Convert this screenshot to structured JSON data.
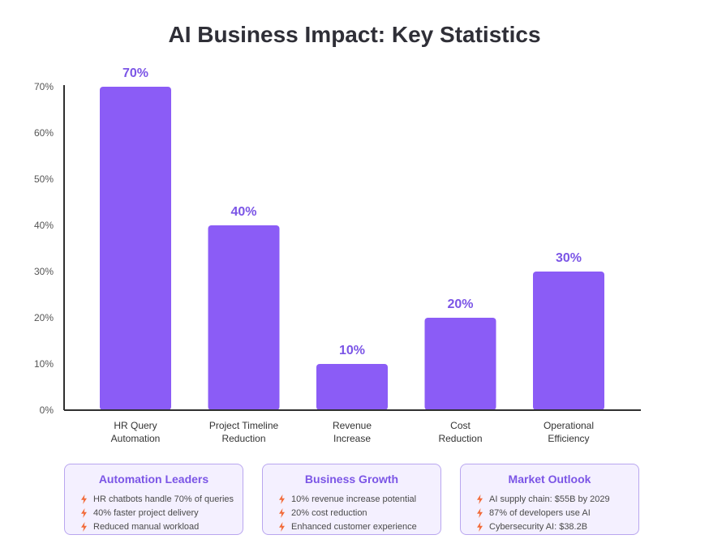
{
  "title": "AI Business Impact: Key Statistics",
  "chart_data": {
    "type": "bar",
    "categories": [
      [
        "HR Query",
        "Automation"
      ],
      [
        "Project Timeline",
        "Reduction"
      ],
      [
        "Revenue",
        "Increase"
      ],
      [
        "Cost",
        "Reduction"
      ],
      [
        "Operational",
        "Efficiency"
      ]
    ],
    "values": [
      70,
      40,
      10,
      20,
      30
    ],
    "value_labels": [
      "70%",
      "40%",
      "10%",
      "20%",
      "30%"
    ],
    "y_ticks": [
      {
        "value": 0,
        "label": "0%"
      },
      {
        "value": 10,
        "label": "10%"
      },
      {
        "value": 20,
        "label": "20%"
      },
      {
        "value": 30,
        "label": "30%"
      },
      {
        "value": 40,
        "label": "40%"
      },
      {
        "value": 50,
        "label": "50%"
      },
      {
        "value": 60,
        "label": "60%"
      },
      {
        "value": 70,
        "label": "70%"
      }
    ],
    "ylim": [
      0,
      70
    ],
    "grid": false,
    "bar_color": "#8b5cf6",
    "label_color": "#7b55e6"
  },
  "cards": [
    {
      "title": "Automation Leaders",
      "items": [
        "HR chatbots handle 70% of queries",
        "40% faster project delivery",
        "Reduced manual workload"
      ]
    },
    {
      "title": "Business Growth",
      "items": [
        "10% revenue increase potential",
        "20% cost reduction",
        "Enhanced customer experience"
      ]
    },
    {
      "title": "Market Outlook",
      "items": [
        "AI supply chain: $55B by 2029",
        "87% of developers use AI",
        "Cybersecurity AI: $38.2B"
      ]
    }
  ],
  "card_icon": "lightning-bolt-icon",
  "bolt_color": "#f26b3a"
}
